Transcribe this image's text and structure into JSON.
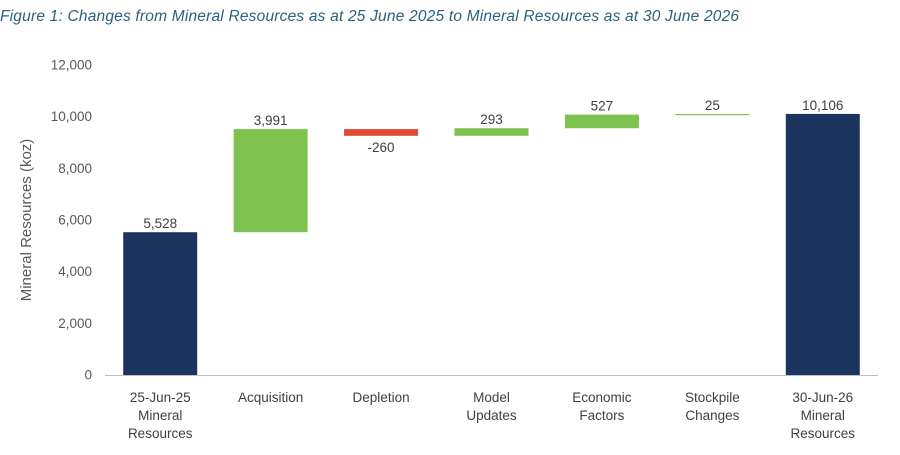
{
  "title": "Figure 1: Changes from Mineral Resources as at 25 June 2025 to Mineral Resources as at 30 June 2026",
  "colors": {
    "total": "#1c355e",
    "increase": "#7dc24e",
    "decrease": "#e14b35",
    "axis": "#bfbfbf"
  },
  "chart_data": {
    "type": "bar",
    "subtype": "waterfall",
    "ylabel": "Mineral Resources (koz)",
    "xlabel": "",
    "ylim": [
      0,
      12000
    ],
    "yticks": [
      "0",
      "2,000",
      "4,000",
      "6,000",
      "8,000",
      "10,000",
      "12,000"
    ],
    "grid": false,
    "categories": [
      [
        "25-Jun-25",
        "Mineral",
        "Resources"
      ],
      [
        "Acquisition"
      ],
      [
        "Depletion"
      ],
      [
        "Model",
        "Updates"
      ],
      [
        "Economic",
        "Factors"
      ],
      [
        "Stockpile",
        "Changes"
      ],
      [
        "30-Jun-26",
        "Mineral",
        "Resources"
      ]
    ],
    "bars": [
      {
        "kind": "total",
        "value": 5528,
        "label": "5,528"
      },
      {
        "kind": "change",
        "value": 3991,
        "label": "3,991"
      },
      {
        "kind": "change",
        "value": -260,
        "label": "-260"
      },
      {
        "kind": "change",
        "value": 293,
        "label": "293"
      },
      {
        "kind": "change",
        "value": 527,
        "label": "527"
      },
      {
        "kind": "change",
        "value": 25,
        "label": "25"
      },
      {
        "kind": "total",
        "value": 10106,
        "label": "10,106"
      }
    ]
  }
}
